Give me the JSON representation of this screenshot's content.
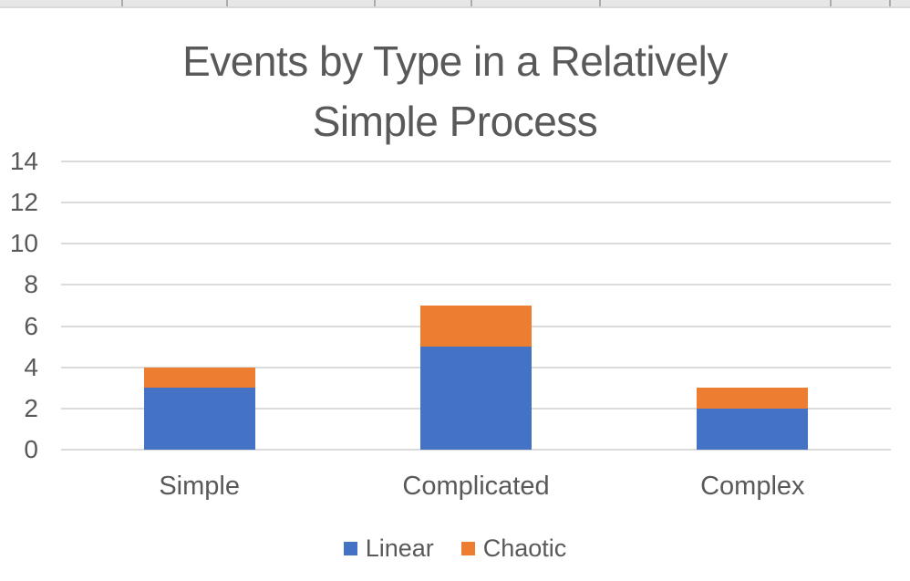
{
  "chart_data": {
    "type": "bar",
    "stacked": true,
    "title": "Events by Type in a Relatively Simple Process",
    "title_lines": [
      "Events by Type in a Relatively",
      "Simple Process"
    ],
    "categories": [
      "Simple",
      "Complicated",
      "Complex"
    ],
    "series": [
      {
        "name": "Linear",
        "color": "#4472C4",
        "values": [
          3,
          5,
          2
        ]
      },
      {
        "name": "Chaotic",
        "color": "#ED7D31",
        "values": [
          1,
          2,
          1
        ]
      }
    ],
    "totals": [
      4,
      7,
      3
    ],
    "yticks": [
      0,
      2,
      4,
      6,
      8,
      10,
      12,
      14
    ],
    "ylim": [
      0,
      14
    ],
    "xlabel": "",
    "ylabel": "",
    "grid": true,
    "legend_position": "bottom",
    "text_color": "#595959",
    "gridline_color": "#DBDBDB"
  }
}
